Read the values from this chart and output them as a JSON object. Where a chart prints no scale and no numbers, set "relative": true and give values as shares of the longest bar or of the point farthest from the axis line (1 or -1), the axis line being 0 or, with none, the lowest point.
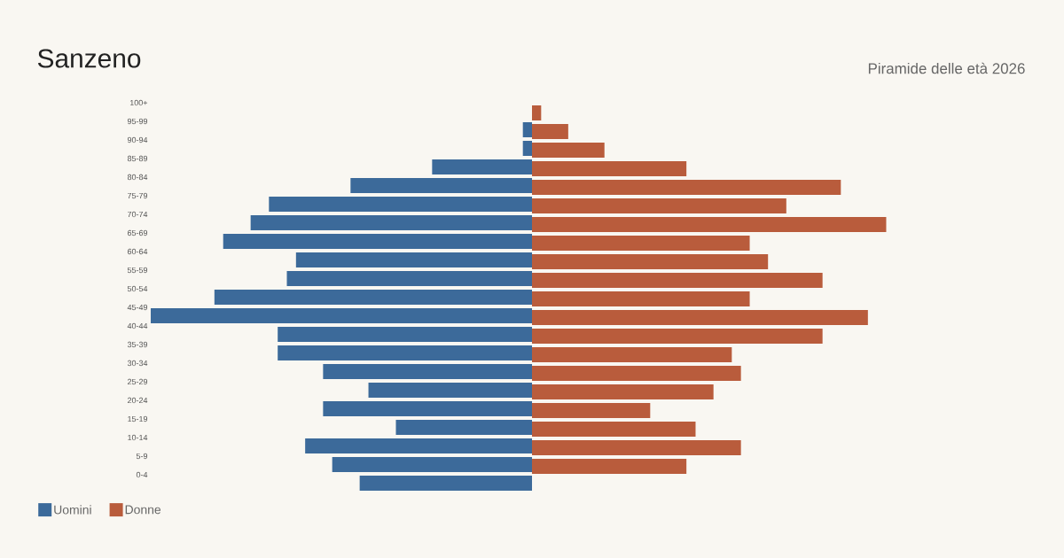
{
  "chart_data": {
    "type": "bar",
    "orientation": "horizontal",
    "relative": true,
    "title": "Sanzeno",
    "subtitle": "Piramide delle età 2026",
    "categories": [
      "100+",
      "95-99",
      "90-94",
      "85-89",
      "80-84",
      "75-79",
      "70-74",
      "65-69",
      "60-64",
      "55-59",
      "50-54",
      "45-49",
      "40-44",
      "35-39",
      "30-34",
      "25-29",
      "20-24",
      "15-19",
      "10-14",
      "5-9",
      "0-4"
    ],
    "series": [
      {
        "name": "Uomini",
        "color": "#3c6a9a",
        "values": [
          0,
          -0.024,
          -0.024,
          -0.262,
          -0.476,
          -0.69,
          -0.738,
          -0.81,
          -0.619,
          -0.643,
          -0.833,
          -1,
          -0.667,
          -0.667,
          -0.548,
          -0.429,
          -0.548,
          -0.357,
          -0.595,
          -0.524,
          -0.452
        ]
      },
      {
        "name": "Donne",
        "color": "#b95c3c",
        "values": [
          0,
          0.024,
          0.095,
          0.19,
          0.405,
          0.81,
          0.667,
          0.929,
          0.571,
          0.619,
          0.762,
          0.571,
          0.881,
          0.762,
          0.524,
          0.548,
          0.476,
          0.31,
          0.429,
          0.548,
          0.405
        ]
      }
    ],
    "legend": "bottom left"
  }
}
